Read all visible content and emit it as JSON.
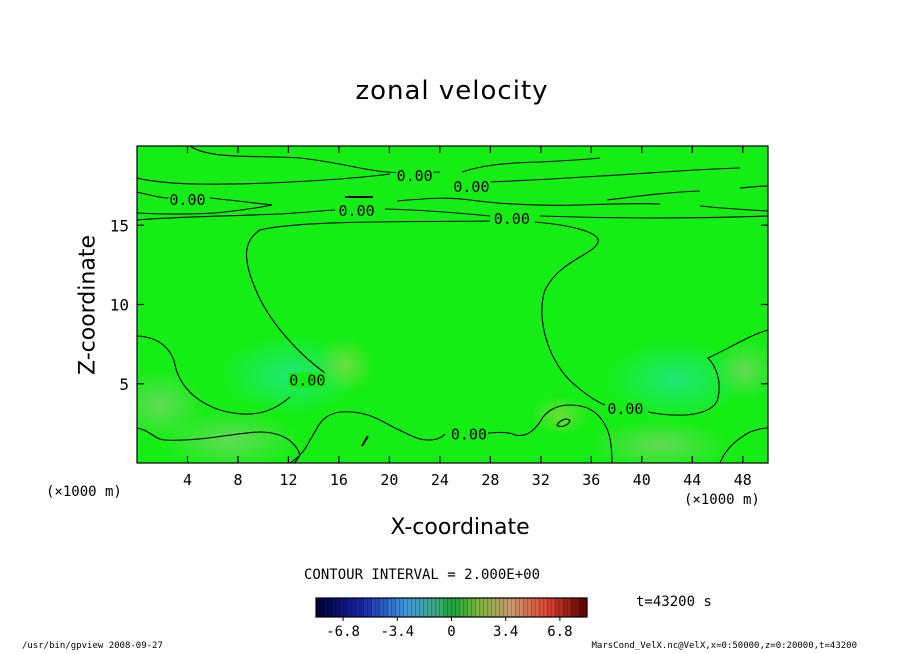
{
  "chart_data": {
    "type": "contour",
    "title": "zonal velocity",
    "xlabel": "X-coordinate",
    "ylabel": "Z-coordinate",
    "x_unit_label": "(×1000 m)",
    "xlim": [
      0,
      50
    ],
    "ylim": [
      0,
      20
    ],
    "x_ticks": [
      4,
      8,
      12,
      16,
      20,
      24,
      28,
      32,
      36,
      40,
      44,
      48
    ],
    "y_ticks": [
      5,
      10,
      15
    ],
    "contour_labels": [
      {
        "text": "0.00",
        "x": 4,
        "y": 16.6
      },
      {
        "text": "0.00",
        "x": 17.4,
        "y": 15.9
      },
      {
        "text": "0.00",
        "x": 22,
        "y": 18.1
      },
      {
        "text": "0.00",
        "x": 26.5,
        "y": 17.4
      },
      {
        "text": "0.00",
        "x": 29.7,
        "y": 15.4
      },
      {
        "text": "0.00",
        "x": 13.5,
        "y": 5.2
      },
      {
        "text": "0.00",
        "x": 38.7,
        "y": 3.4
      },
      {
        "text": "0.00",
        "x": 26.3,
        "y": 1.8
      }
    ],
    "contour_interval_label": "CONTOUR INTERVAL = 2.000E+00",
    "colorbar": {
      "ticks": [
        "-6.8",
        "-3.4",
        "0",
        "3.4",
        "6.8"
      ],
      "range": [
        -8.5,
        8.5
      ]
    },
    "time_label": "t=43200 s",
    "colors": {
      "field": "#14ee14",
      "field_light": "#60dc5a",
      "field_cool": "#2fe665",
      "contour": "#000000"
    }
  },
  "footer": {
    "left": "/usr/bin/gpview   2008-09-27",
    "right": "MarsCond_VelX.nc@VelX,x=0:50000,z=0:20000,t=43200"
  }
}
